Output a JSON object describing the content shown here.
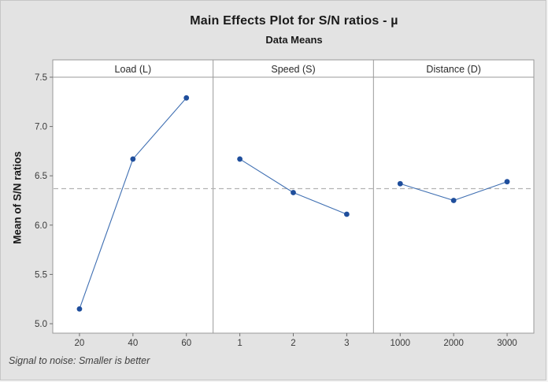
{
  "window": {
    "background": "#e3e3e3",
    "border_color": "#c6c6c6"
  },
  "header": {
    "title": "Main Effects Plot for S/N ratios - µ",
    "subtitle": "Data Means"
  },
  "footer": {
    "note": "Signal to noise: Smaller is better"
  },
  "chart_data": {
    "type": "line",
    "title": "Main Effects Plot for S/N ratios - µ",
    "subtitle": "Data Means",
    "ylabel": "Mean of S/N ratios",
    "xlabel": "",
    "ylim": [
      4.9,
      7.55
    ],
    "yticks": [
      5.0,
      5.5,
      6.0,
      6.5,
      7.0,
      7.5
    ],
    "ytick_decimals": 1,
    "grand_mean": 6.37,
    "mean_line_style": "dashed",
    "grid": "off",
    "legend": "none",
    "panels": [
      {
        "label": "Load (L)",
        "categories": [
          "20",
          "40",
          "60"
        ],
        "values": [
          5.15,
          6.67,
          7.29
        ]
      },
      {
        "label": "Speed (S)",
        "categories": [
          "1",
          "2",
          "3"
        ],
        "values": [
          6.67,
          6.33,
          6.11
        ]
      },
      {
        "label": "Distance (D)",
        "categories": [
          "1000",
          "2000",
          "3000"
        ],
        "values": [
          6.42,
          6.25,
          6.44
        ]
      }
    ],
    "colors": {
      "marker": "#1f4e9c",
      "line": "#3f6fb2",
      "mean_line": "#b3b3b3",
      "panel_border": "#9a9a9a",
      "panel_background": "#ffffff",
      "tick_text": "#3a3a3a",
      "header_text": "#2a2a2a"
    }
  }
}
